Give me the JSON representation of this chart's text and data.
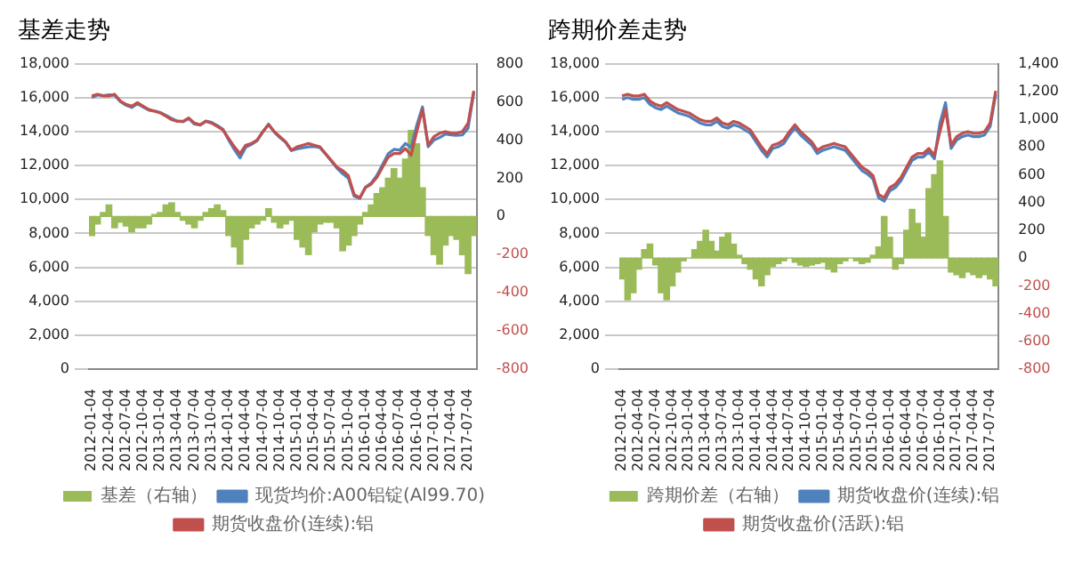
{
  "chart_data": [
    {
      "type": "line",
      "title": "基差走势",
      "categories": [
        "2012-01-04",
        null,
        null,
        "2012-04-04",
        null,
        null,
        "2012-07-04",
        null,
        null,
        "2012-10-04",
        null,
        null,
        "2013-01-04",
        null,
        null,
        "2013-04-04",
        null,
        null,
        "2013-07-04",
        null,
        null,
        "2013-10-04",
        null,
        null,
        "2014-01-04",
        null,
        null,
        "2014-04-04",
        null,
        null,
        "2014-07-04",
        null,
        null,
        "2014-10-04",
        null,
        null,
        "2015-01-04",
        null,
        null,
        "2015-04-04",
        null,
        null,
        "2015-07-04",
        null,
        null,
        "2015-10-04",
        null,
        null,
        "2016-01-04",
        null,
        null,
        "2016-04-04",
        null,
        null,
        "2016-07-04",
        null,
        null,
        "2016-10-04",
        null,
        null,
        "2017-01-04",
        null,
        null,
        "2017-04-04",
        null,
        null,
        "2017-07-04",
        null
      ],
      "series": [
        {
          "name": "基差（右轴）",
          "type": "bar",
          "axis": "y2",
          "color": "#9bbb59",
          "values": [
            -100,
            -40,
            20,
            60,
            -60,
            -30,
            -50,
            -80,
            -60,
            -60,
            -40,
            10,
            20,
            60,
            70,
            20,
            -20,
            -40,
            -60,
            -20,
            20,
            40,
            60,
            30,
            -100,
            -160,
            -250,
            -120,
            -60,
            -40,
            -20,
            40,
            -30,
            -60,
            -40,
            -20,
            -120,
            -160,
            -200,
            -80,
            -40,
            -30,
            -30,
            -60,
            -180,
            -150,
            -100,
            -40,
            20,
            60,
            120,
            150,
            200,
            250,
            200,
            300,
            450,
            380,
            150,
            -100,
            -200,
            -250,
            -150,
            -100,
            -120,
            -200,
            -300,
            -100
          ]
        },
        {
          "name": "现货均价:A00铝锭(Al99.70)",
          "color": "#4f81bd",
          "values": [
            16000,
            16160,
            16120,
            16160,
            16140,
            15770,
            15550,
            15420,
            15640,
            15440,
            15260,
            15210,
            15120,
            14960,
            14770,
            14620,
            14580,
            14760,
            14440,
            14380,
            14620,
            14540,
            14360,
            14130,
            13500,
            12940,
            12450,
            13080,
            13240,
            13460,
            13980,
            14440,
            13970,
            13640,
            13360,
            12880,
            12980,
            13040,
            13100,
            13120,
            13060,
            12670,
            12270,
            11840,
            11520,
            11250,
            10200,
            10060,
            10720,
            10960,
            11420,
            12050,
            12700,
            12950,
            12900,
            13300,
            13050,
            14380,
            15450,
            13100,
            13500,
            13650,
            13850,
            13800,
            13780,
            13800,
            14200,
            16300
          ]
        },
        {
          "name": "期货收盘价(连续):铝",
          "color": "#c0504d",
          "values": [
            16100,
            16200,
            16100,
            16100,
            16200,
            15800,
            15600,
            15500,
            15700,
            15500,
            15300,
            15200,
            15100,
            14900,
            14700,
            14600,
            14600,
            14800,
            14500,
            14400,
            14600,
            14500,
            14300,
            14100,
            13600,
            13100,
            12700,
            13200,
            13300,
            13500,
            14000,
            14400,
            14000,
            13700,
            13400,
            12900,
            13100,
            13200,
            13300,
            13200,
            13100,
            12700,
            12300,
            11900,
            11700,
            11400,
            10300,
            10100,
            10700,
            10900,
            11300,
            11900,
            12500,
            12700,
            12700,
            13000,
            12600,
            14000,
            15300,
            13200,
            13700,
            13900,
            14000,
            13900,
            13900,
            14000,
            14500,
            16400
          ]
        }
      ],
      "ylim": [
        0,
        18000
      ],
      "yticks": [
        0,
        {
          "value": 2000,
          "label": "2,000"
        },
        {
          "value": 4000,
          "label": "4,000"
        },
        {
          "value": 6000,
          "label": "6,000"
        },
        {
          "value": 8000,
          "label": "8,000"
        },
        {
          "value": 10000,
          "label": "10,000"
        },
        {
          "value": 12000,
          "label": "12,000"
        },
        {
          "value": 14000,
          "label": "14,000"
        },
        {
          "value": 16000,
          "label": "16,000"
        },
        {
          "value": 18000,
          "label": "18,000"
        }
      ],
      "y2lim": [
        -800,
        800
      ],
      "y2ticks": [
        -800,
        -600,
        -400,
        -200,
        0,
        200,
        400,
        600,
        800
      ],
      "grid": "y",
      "legend": "bottom",
      "marker": "none"
    },
    {
      "type": "line",
      "title": "跨期价差走势",
      "categories": [
        "2012-01-04",
        null,
        null,
        "2012-04-04",
        null,
        null,
        "2012-07-04",
        null,
        null,
        "2012-10-04",
        null,
        null,
        "2013-01-04",
        null,
        null,
        "2013-04-04",
        null,
        null,
        "2013-07-04",
        null,
        null,
        "2013-10-04",
        null,
        null,
        "2014-01-04",
        null,
        null,
        "2014-04-04",
        null,
        null,
        "2014-07-04",
        null,
        null,
        "2014-10-04",
        null,
        null,
        "2015-01-04",
        null,
        null,
        "2015-04-04",
        null,
        null,
        "2015-07-04",
        null,
        null,
        "2015-10-04",
        null,
        null,
        "2016-01-04",
        null,
        null,
        "2016-04-04",
        null,
        null,
        "2016-07-04",
        null,
        null,
        "2016-10-04",
        null,
        null,
        "2017-01-04",
        null,
        null,
        "2017-04-04",
        null,
        null,
        "2017-07-04",
        null
      ],
      "series": [
        {
          "name": "跨期价差（右轴）",
          "type": "bar",
          "axis": "y2",
          "color": "#9bbb59",
          "values": [
            -150,
            -300,
            -250,
            -80,
            60,
            100,
            -50,
            -250,
            -300,
            -200,
            -100,
            -20,
            0,
            60,
            120,
            200,
            120,
            50,
            150,
            180,
            100,
            20,
            -40,
            -80,
            -150,
            -200,
            -120,
            -60,
            -40,
            -20,
            0,
            -30,
            -50,
            -60,
            -50,
            -40,
            -30,
            -80,
            -100,
            -40,
            -20,
            0,
            -20,
            -40,
            -30,
            20,
            80,
            300,
            150,
            -80,
            -40,
            200,
            350,
            250,
            150,
            500,
            600,
            700,
            300,
            -100,
            -120,
            -140,
            -100,
            -120,
            -140,
            -120,
            -150,
            -200
          ]
        },
        {
          "name": "期货收盘价(连续):铝",
          "color": "#4f81bd",
          "values": [
            15900,
            16000,
            15900,
            15900,
            16000,
            15600,
            15400,
            15300,
            15500,
            15300,
            15100,
            15000,
            14900,
            14700,
            14500,
            14400,
            14400,
            14600,
            14300,
            14200,
            14400,
            14300,
            14100,
            13900,
            13400,
            12900,
            12500,
            13000,
            13100,
            13300,
            13800,
            14200,
            13800,
            13500,
            13200,
            12700,
            12900,
            13000,
            13100,
            13000,
            12900,
            12500,
            12100,
            11700,
            11500,
            11200,
            10100,
            9900,
            10500,
            10700,
            11100,
            11700,
            12300,
            12500,
            12500,
            12800,
            12400,
            14500,
            15700,
            13000,
            13500,
            13700,
            13800,
            13700,
            13700,
            13800,
            14300,
            16200
          ]
        },
        {
          "name": "期货收盘价(活跃):铝",
          "color": "#c0504d",
          "values": [
            16100,
            16200,
            16100,
            16100,
            16200,
            15800,
            15600,
            15500,
            15700,
            15500,
            15300,
            15200,
            15100,
            14900,
            14700,
            14600,
            14600,
            14800,
            14500,
            14400,
            14600,
            14500,
            14300,
            14100,
            13600,
            13100,
            12700,
            13200,
            13300,
            13500,
            14000,
            14400,
            14000,
            13700,
            13400,
            12900,
            13100,
            13200,
            13300,
            13200,
            13100,
            12700,
            12300,
            11900,
            11700,
            11400,
            10300,
            10100,
            10700,
            10900,
            11300,
            11900,
            12500,
            12700,
            12700,
            13000,
            12600,
            14000,
            15300,
            13200,
            13700,
            13900,
            14000,
            13900,
            13900,
            14000,
            14500,
            16400
          ]
        }
      ],
      "ylim": [
        0,
        18000
      ],
      "yticks": [
        0,
        {
          "value": 2000,
          "label": "2,000"
        },
        {
          "value": 4000,
          "label": "4,000"
        },
        {
          "value": 6000,
          "label": "6,000"
        },
        {
          "value": 8000,
          "label": "8,000"
        },
        {
          "value": 10000,
          "label": "10,000"
        },
        {
          "value": 12000,
          "label": "12,000"
        },
        {
          "value": 14000,
          "label": "14,000"
        },
        {
          "value": 16000,
          "label": "16,000"
        },
        {
          "value": 18000,
          "label": "18,000"
        }
      ],
      "y2lim": [
        -800,
        1400
      ],
      "y2ticks": [
        -800,
        -600,
        -400,
        -200,
        0,
        200,
        400,
        600,
        800,
        {
          "value": 1000,
          "label": "1,000"
        },
        {
          "value": 1200,
          "label": "1,200"
        },
        {
          "value": 1400,
          "label": "1,400"
        }
      ],
      "grid": "y",
      "legend": "bottom",
      "marker": "none"
    }
  ]
}
